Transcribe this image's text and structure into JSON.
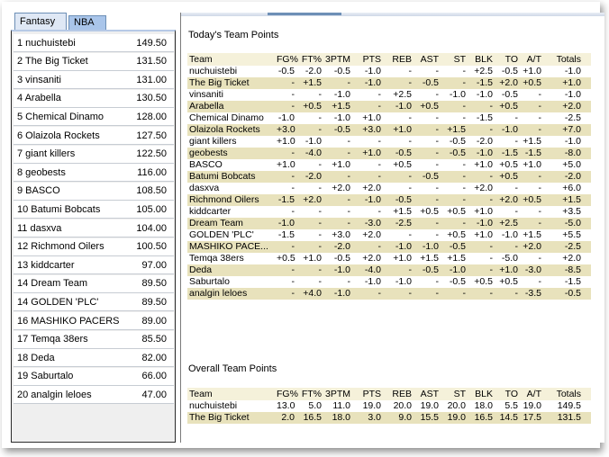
{
  "tabs": [
    {
      "label": "Fantasy",
      "selected": true
    },
    {
      "label": "NBA",
      "selected": false
    }
  ],
  "standings": [
    {
      "label": "1   nuchuistebi",
      "value": "149.50"
    },
    {
      "label": "2   The Big Ticket",
      "value": "131.50"
    },
    {
      "label": "3   vinsaniti",
      "value": "131.00"
    },
    {
      "label": "4   Arabella",
      "value": "130.50"
    },
    {
      "label": "5   Chemical Dinamo",
      "value": "128.00"
    },
    {
      "label": "6   Olaizola Rockets",
      "value": "127.50"
    },
    {
      "label": "7   giant killers",
      "value": "122.50"
    },
    {
      "label": "8   geobests",
      "value": "116.00"
    },
    {
      "label": "9   BASCO",
      "value": "108.50"
    },
    {
      "label": "10 Batumi Bobcats",
      "value": "105.00"
    },
    {
      "label": "11 dasxva",
      "value": "104.00"
    },
    {
      "label": "12 Richmond Oilers",
      "value": "100.50"
    },
    {
      "label": "13 kiddcarter",
      "value": "97.00"
    },
    {
      "label": "14 Dream Team",
      "value": "89.50"
    },
    {
      "label": "14 GOLDEN 'PLC'",
      "value": "89.50"
    },
    {
      "label": "16 MASHIKO PACERS",
      "value": "89.00"
    },
    {
      "label": "17 Temqa 38ers",
      "value": "85.50"
    },
    {
      "label": "18 Deda",
      "value": "82.00"
    },
    {
      "label": "19 Saburtalo",
      "value": "66.00"
    },
    {
      "label": "20 analgin leloes",
      "value": "47.00"
    }
  ],
  "todays": {
    "title": "Today's Team Points",
    "columns": [
      "Team",
      "FG%",
      "FT%",
      "3PTM",
      "PTS",
      "REB",
      "AST",
      "ST",
      "BLK",
      "TO",
      "A/T",
      "Totals"
    ],
    "rows": [
      [
        "nuchuistebi",
        "-0.5",
        "-2.0",
        "-0.5",
        "-1.0",
        "-",
        "-",
        "-",
        "+2.5",
        "-0.5",
        "+1.0",
        "-1.0"
      ],
      [
        "The Big Ticket",
        "-",
        "+1.5",
        "-",
        "-1.0",
        "-",
        "-0.5",
        "-",
        "-1.5",
        "+2.0",
        "+0.5",
        "+1.0"
      ],
      [
        "vinsaniti",
        "-",
        "-",
        "-1.0",
        "-",
        "+2.5",
        "-",
        "-1.0",
        "-1.0",
        "-0.5",
        "-",
        "-1.0"
      ],
      [
        "Arabella",
        "-",
        "+0.5",
        "+1.5",
        "-",
        "-1.0",
        "+0.5",
        "-",
        "-",
        "+0.5",
        "-",
        "+2.0"
      ],
      [
        "Chemical Dinamo",
        "-1.0",
        "-",
        "-1.0",
        "+1.0",
        "-",
        "-",
        "-",
        "-1.5",
        "-",
        "-",
        "-2.5"
      ],
      [
        "Olaizola Rockets",
        "+3.0",
        "-",
        "-0.5",
        "+3.0",
        "+1.0",
        "-",
        "+1.5",
        "-",
        "-1.0",
        "-",
        "+7.0"
      ],
      [
        "giant killers",
        "+1.0",
        "-1.0",
        "-",
        "-",
        "-",
        "-",
        "-0.5",
        "-2.0",
        "-",
        "+1.5",
        "-1.0"
      ],
      [
        "geobests",
        "-",
        "-4.0",
        "-",
        "+1.0",
        "-0.5",
        "-",
        "-0.5",
        "-1.0",
        "-1.5",
        "-1.5",
        "-8.0"
      ],
      [
        "BASCO",
        "+1.0",
        "-",
        "+1.0",
        "-",
        "+0.5",
        "-",
        "-",
        "+1.0",
        "+0.5",
        "+1.0",
        "+5.0"
      ],
      [
        "Batumi Bobcats",
        "-",
        "-2.0",
        "-",
        "-",
        "-",
        "-0.5",
        "-",
        "-",
        "+0.5",
        "-",
        "-2.0"
      ],
      [
        "dasxva",
        "-",
        "-",
        "+2.0",
        "+2.0",
        "-",
        "-",
        "-",
        "+2.0",
        "-",
        "-",
        "+6.0"
      ],
      [
        "Richmond Oilers",
        "-1.5",
        "+2.0",
        "-",
        "-1.0",
        "-0.5",
        "-",
        "-",
        "-",
        "+2.0",
        "+0.5",
        "+1.5"
      ],
      [
        "kiddcarter",
        "-",
        "-",
        "-",
        "-",
        "+1.5",
        "+0.5",
        "+0.5",
        "+1.0",
        "-",
        "-",
        "+3.5"
      ],
      [
        "Dream Team",
        "-1.0",
        "-",
        "-",
        "-3.0",
        "-2.5",
        "-",
        "-",
        "-1.0",
        "+2.5",
        "-",
        "-5.0"
      ],
      [
        "GOLDEN 'PLC'",
        "-1.5",
        "-",
        "+3.0",
        "+2.0",
        "-",
        "-",
        "+0.5",
        "+1.0",
        "-1.0",
        "+1.5",
        "+5.5"
      ],
      [
        "MASHIKO PACE...",
        "-",
        "-",
        "-2.0",
        "-",
        "-1.0",
        "-1.0",
        "-0.5",
        "-",
        "-",
        "+2.0",
        "-2.5"
      ],
      [
        "Temqa 38ers",
        "+0.5",
        "+1.0",
        "-0.5",
        "+2.0",
        "+1.0",
        "+1.5",
        "+1.5",
        "-",
        "-5.0",
        "-",
        "+2.0"
      ],
      [
        "Deda",
        "-",
        "-",
        "-1.0",
        "-4.0",
        "-",
        "-0.5",
        "-1.0",
        "-",
        "+1.0",
        "-3.0",
        "-8.5"
      ],
      [
        "Saburtalo",
        "-",
        "-",
        "-",
        "-1.0",
        "-1.0",
        "-",
        "-0.5",
        "+0.5",
        "+0.5",
        "-",
        "-1.5"
      ],
      [
        "analgin leloes",
        "-",
        "+4.0",
        "-1.0",
        "-",
        "-",
        "-",
        "-",
        "-",
        "-",
        "-3.5",
        "-0.5"
      ]
    ]
  },
  "overall": {
    "title": "Overall Team Points",
    "columns": [
      "Team",
      "FG%",
      "FT%",
      "3PTM",
      "PTS",
      "REB",
      "AST",
      "ST",
      "BLK",
      "TO",
      "A/T",
      "Totals"
    ],
    "rows": [
      [
        "nuchuistebi",
        "13.0",
        "5.0",
        "11.0",
        "19.0",
        "20.0",
        "19.0",
        "20.0",
        "18.0",
        "5.5",
        "19.0",
        "149.5"
      ],
      [
        "The Big Ticket",
        "2.0",
        "16.5",
        "18.0",
        "3.0",
        "9.0",
        "15.5",
        "19.0",
        "16.5",
        "14.5",
        "17.5",
        "131.5"
      ]
    ]
  },
  "colors": {
    "row_alt": "#e8e2bc",
    "row_plain": "#ffffff",
    "tab_selected": "#dfe8f5",
    "tab_other": "#a9c5ea"
  }
}
